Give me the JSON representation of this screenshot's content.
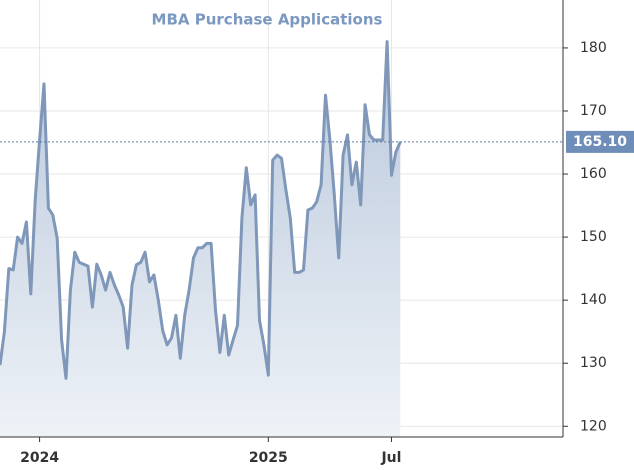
{
  "chart_data": {
    "type": "area",
    "title": "MBA Purchase Applications",
    "categories": [
      null,
      null,
      null,
      null,
      null,
      null,
      null,
      null,
      null,
      "2024",
      null,
      null,
      null,
      null,
      null,
      null,
      null,
      null,
      null,
      null,
      null,
      null,
      null,
      null,
      null,
      null,
      null,
      null,
      null,
      null,
      null,
      null,
      null,
      null,
      null,
      null,
      null,
      null,
      null,
      null,
      null,
      null,
      null,
      null,
      null,
      null,
      null,
      null,
      null,
      null,
      null,
      null,
      null,
      null,
      null,
      null,
      null,
      null,
      null,
      null,
      null,
      "2025",
      null,
      null,
      null,
      null,
      null,
      null,
      null,
      null,
      null,
      null,
      null,
      null,
      null,
      null,
      null,
      null,
      null,
      null,
      null,
      null,
      null,
      null,
      null,
      null,
      null,
      null,
      null,
      "Jul",
      null,
      null,
      null,
      null,
      null,
      null,
      null,
      null,
      null,
      null,
      null,
      null,
      null,
      null,
      null,
      null,
      null,
      null,
      null,
      null,
      null,
      null,
      null,
      null,
      null,
      null,
      null,
      null,
      null,
      null,
      null,
      null,
      null,
      null,
      null,
      null,
      null,
      null,
      null
    ],
    "values": [
      129.7,
      135,
      145,
      144.8,
      150,
      149,
      152.4,
      141,
      155.9,
      165.4,
      174.3,
      154.6,
      153.5,
      149.8,
      133.7,
      127.6,
      141.6,
      147.6,
      146,
      145.7,
      145.4,
      138.9,
      145.7,
      144,
      141.6,
      144.4,
      142.4,
      140.8,
      138.9,
      132.4,
      142.4,
      145.6,
      146,
      147.6,
      142.9,
      144,
      140,
      135.2,
      132.9,
      134,
      137.6,
      130.8,
      137.6,
      141.6,
      146.7,
      148.3,
      148.3,
      149,
      149,
      138.4,
      131.7,
      137.6,
      131.3,
      133.7,
      136,
      153,
      161,
      155.1,
      156.7,
      136.8,
      132.9,
      128.1,
      162.2,
      163,
      162.5,
      157.5,
      153,
      144.4,
      144.4,
      144.8,
      154.3,
      154.6,
      155.6,
      158.3,
      172.5,
      165.4,
      156.7,
      146.7,
      163,
      166.2,
      158.3,
      161.9,
      155.1,
      171,
      166.2,
      165.4,
      165.4,
      165.4,
      181,
      159.8,
      163.5,
      165.1,
      null,
      null,
      null,
      null,
      null,
      null,
      null,
      null,
      null,
      null,
      null,
      null,
      null,
      null,
      null,
      null,
      null,
      null,
      null,
      null,
      null,
      null,
      null,
      null,
      null,
      null,
      null,
      null,
      null,
      null,
      null,
      null,
      null,
      null,
      null,
      null,
      null
    ],
    "value_labels": [
      null,
      null,
      null,
      null,
      null,
      null,
      null,
      null,
      null,
      null,
      null,
      null,
      null,
      null,
      null,
      null,
      null,
      null,
      null,
      null,
      null,
      null,
      null,
      null,
      null,
      null,
      null,
      null,
      null,
      null,
      null,
      null,
      null,
      null,
      null,
      null,
      null,
      null,
      null,
      null,
      null,
      null,
      null,
      null,
      null,
      null,
      null,
      null,
      null,
      null,
      null,
      null,
      null,
      null,
      null,
      null,
      null,
      null,
      null,
      null,
      null,
      null,
      null,
      null,
      null,
      null,
      null,
      null,
      null,
      null,
      null,
      null,
      null,
      null,
      null,
      null,
      null,
      null,
      null,
      null,
      null,
      null,
      null,
      null,
      null,
      null,
      null,
      null,
      null,
      null,
      null,
      "165.10",
      null,
      null,
      null,
      null,
      null,
      null,
      null,
      null,
      null,
      null,
      null,
      null,
      null,
      null,
      null,
      null,
      null,
      null,
      null,
      null,
      null,
      null,
      null,
      null,
      null,
      null,
      null,
      null,
      null,
      null,
      null,
      null,
      null,
      null,
      null,
      null,
      null
    ],
    "color": "#7f97b8",
    "ylim": [
      118.3,
      187.6
    ],
    "yticks": [
      120,
      130,
      140,
      150,
      160,
      170,
      180
    ],
    "grid": true
  }
}
